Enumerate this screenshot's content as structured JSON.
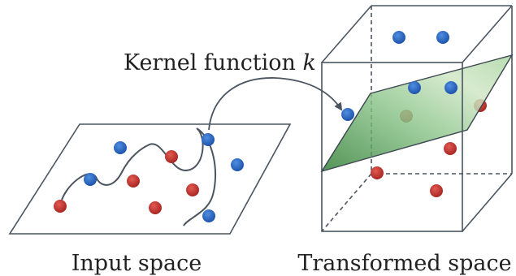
{
  "labels": {
    "kernel_prefix": "Kernel function ",
    "kernel_symbol": "k",
    "input_space": "Input space",
    "transformed_space": "Transformed space"
  },
  "colors": {
    "blue_point": "#1f5fbf",
    "red_point": "#c0302c",
    "line": "#4a5560",
    "plane_green": "#4caf50"
  }
}
